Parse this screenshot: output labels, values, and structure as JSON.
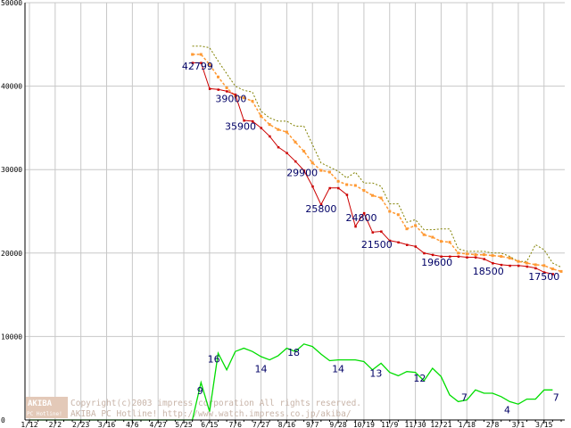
{
  "chart_data": {
    "type": "line",
    "ylim": [
      0,
      50000
    ],
    "yticks": [
      0,
      10000,
      20000,
      30000,
      40000,
      50000
    ],
    "x_count": 63,
    "x_ticks": [
      {
        "i": 0,
        "label": "1/12"
      },
      {
        "i": 3,
        "label": "2/2"
      },
      {
        "i": 6,
        "label": "2/23"
      },
      {
        "i": 9,
        "label": "3/16"
      },
      {
        "i": 12,
        "label": "4/6"
      },
      {
        "i": 15,
        "label": "4/27"
      },
      {
        "i": 18,
        "label": "5/25"
      },
      {
        "i": 21,
        "label": "6/15"
      },
      {
        "i": 24,
        "label": "7/6"
      },
      {
        "i": 27,
        "label": "7/27"
      },
      {
        "i": 30,
        "label": "8/16"
      },
      {
        "i": 33,
        "label": "9/7"
      },
      {
        "i": 36,
        "label": "9/28"
      },
      {
        "i": 39,
        "label": "10/19"
      },
      {
        "i": 42,
        "label": "11/9"
      },
      {
        "i": 45,
        "label": "11/30"
      },
      {
        "i": 48,
        "label": "12/21"
      },
      {
        "i": 51,
        "label": "1/18"
      },
      {
        "i": 54,
        "label": "2/8"
      },
      {
        "i": 57,
        "label": "3/1"
      },
      {
        "i": 60,
        "label": "3/15"
      }
    ],
    "grid": true,
    "series": [
      {
        "color": "#808000",
        "style": "dotted",
        "start_index": 19,
        "values": [
          44800,
          44800,
          44600,
          43000,
          41500,
          40000,
          39500,
          39300,
          37000,
          36200,
          35800,
          35800,
          35200,
          35200,
          33000,
          30800,
          30300,
          29800,
          29000,
          29700,
          28400,
          28400,
          28000,
          25900,
          25900,
          23700,
          24000,
          22800,
          22800,
          22900,
          22900,
          20500,
          20200,
          20200,
          20200,
          20000,
          20000,
          19600,
          19000,
          19000,
          21000,
          20400,
          18800,
          18300
        ]
      },
      {
        "color": "#ff9933",
        "style": "dash-square",
        "start_index": 19,
        "values": [
          43800,
          43800,
          42600,
          41100,
          39800,
          38800,
          38600,
          38200,
          36400,
          35400,
          34800,
          34500,
          33300,
          32200,
          30800,
          29900,
          29700,
          28600,
          28200,
          28100,
          27500,
          26900,
          26600,
          25000,
          24600,
          22900,
          23300,
          22200,
          21900,
          21400,
          21300,
          20000,
          19900,
          19800,
          19800,
          19700,
          19600,
          19400,
          19000,
          18800,
          18600,
          18500,
          18100,
          17800
        ]
      },
      {
        "color": "#cc0000",
        "style": "solid-marker",
        "start_index": 19,
        "values": [
          42800,
          42799,
          39700,
          39600,
          39400,
          39000,
          35900,
          35800,
          35000,
          34000,
          32700,
          32000,
          31000,
          29900,
          28000,
          25800,
          27800,
          27800,
          27000,
          23200,
          24800,
          22500,
          22600,
          21500,
          21300,
          21000,
          20800,
          20000,
          19800,
          19600,
          19600,
          19600,
          19500,
          19500,
          19300,
          18800,
          18600,
          18500,
          18500,
          18400,
          18200,
          17700,
          17500
        ]
      },
      {
        "color": "#00dd00",
        "style": "solid",
        "start_index": 0,
        "values": [
          0,
          0,
          0,
          0,
          0,
          0,
          0,
          0,
          0,
          0,
          0,
          0,
          0,
          0,
          0,
          0,
          0,
          0,
          0,
          0,
          4500,
          1000,
          8000,
          6000,
          8200,
          8600,
          8200,
          7600,
          7200,
          7700,
          8600,
          8200,
          9100,
          8800,
          7900,
          7100,
          7200,
          7200,
          7200,
          7000,
          6000,
          6800,
          5700,
          5300,
          5800,
          5700,
          4700,
          6200,
          5200,
          3000,
          2200,
          2400,
          3600,
          3200,
          3200,
          2800,
          2200,
          1900,
          2500,
          2500,
          3600,
          3600
        ]
      }
    ],
    "annotations": [
      {
        "text": "42799",
        "i": 19.6,
        "y": 42000
      },
      {
        "text": "39000",
        "i": 23.5,
        "y": 38100
      },
      {
        "text": "35900",
        "i": 24.6,
        "y": 34800
      },
      {
        "text": "29900",
        "i": 31.8,
        "y": 29200
      },
      {
        "text": "25800",
        "i": 34.0,
        "y": 24900
      },
      {
        "text": "24800",
        "i": 38.7,
        "y": 23800
      },
      {
        "text": "21500",
        "i": 40.5,
        "y": 20600
      },
      {
        "text": "19600",
        "i": 47.5,
        "y": 18500
      },
      {
        "text": "18500",
        "i": 53.5,
        "y": 17400
      },
      {
        "text": "17500",
        "i": 60.0,
        "y": 16800
      },
      {
        "text": "16",
        "i": 21.5,
        "y": 6900
      },
      {
        "text": "9",
        "i": 19.9,
        "y": 3100
      },
      {
        "text": "14",
        "i": 27.0,
        "y": 5700
      },
      {
        "text": "18",
        "i": 30.8,
        "y": 7700
      },
      {
        "text": "14",
        "i": 36.0,
        "y": 5700
      },
      {
        "text": "13",
        "i": 40.4,
        "y": 5200
      },
      {
        "text": "12",
        "i": 45.5,
        "y": 4600
      },
      {
        "text": "7",
        "i": 50.7,
        "y": 2300
      },
      {
        "text": "4",
        "i": 55.7,
        "y": 800
      },
      {
        "text": "7",
        "i": 61.4,
        "y": 2300
      }
    ]
  },
  "watermark": {
    "badge_top": "AKIBA",
    "badge_bottom": "PC Hotline!",
    "line1": "Copyright(c)2003 impress corporation All rights reserved.",
    "line2": "AKIBA PC Hotline! http://www.watch.impress.co.jp/akiba/"
  }
}
